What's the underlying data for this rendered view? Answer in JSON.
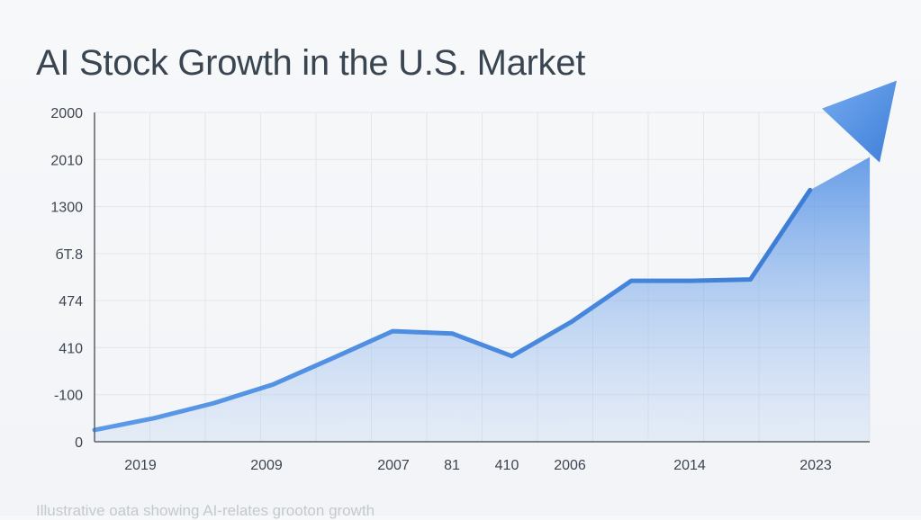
{
  "header": {
    "title": "AI Stock Growth in the U.S. Market"
  },
  "footer": {
    "caption": "Illustrative oata showing AI-relates grooton growth"
  },
  "colors": {
    "line": "#4a86dc",
    "fill": "#5c97e6",
    "grid": "#e3e6ea",
    "axis": "#5a6068",
    "text": "#3a4552"
  },
  "chart_data": {
    "type": "area",
    "title": "AI Stock Growth in the U.S. Market",
    "xlabel": "",
    "ylabel": "",
    "y_tick_labels": [
      "2000",
      "2010",
      "1300",
      "бT.8",
      "474",
      "410",
      "-100",
      "0"
    ],
    "x_tick_labels": [
      "2019",
      "2009",
      "2007",
      "81",
      "410",
      "2006",
      "2014",
      "2023"
    ],
    "ylim": [
      0,
      7
    ],
    "grid": true,
    "legend": "none",
    "note": "y values expressed in gridline steps (0 = bottom tick, 7 = top tick) because tick labels are non-monotonic",
    "series": [
      {
        "values_xy": [
          [
            0.0,
            0.25
          ],
          [
            0.5,
            0.5
          ],
          [
            1.0,
            0.82
          ],
          [
            1.5,
            1.22
          ],
          [
            2.0,
            1.78
          ],
          [
            2.5,
            2.35
          ],
          [
            3.0,
            2.3
          ],
          [
            3.5,
            1.82
          ],
          [
            4.0,
            2.55
          ],
          [
            4.5,
            3.42
          ],
          [
            5.0,
            3.42
          ],
          [
            5.5,
            3.45
          ],
          [
            6.0,
            5.35
          ],
          [
            6.5,
            6.05
          ]
        ]
      }
    ]
  }
}
